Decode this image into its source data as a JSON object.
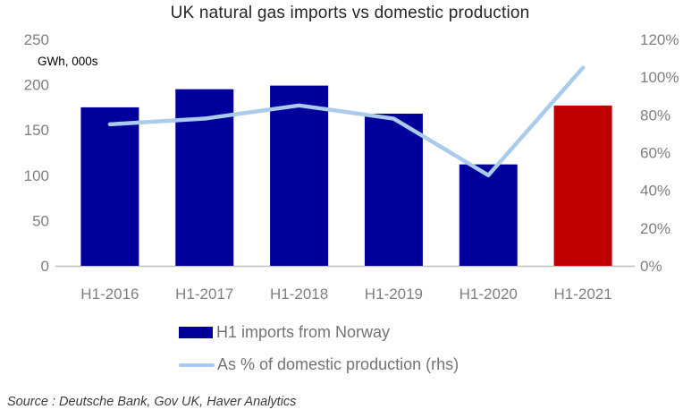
{
  "title": "UK natural gas imports vs domestic production",
  "source": "Source : Deutsche Bank, Gov UK, Haver Analytics",
  "colors": {
    "bar": "#02009A",
    "bar_highlight": "#C00000",
    "line": "#AACBEB",
    "axis_text": "#7F7F7F",
    "baseline": "#BFBFBF",
    "title_text": "#262626",
    "legend_text": "#737373",
    "source_text": "#3C3C3C"
  },
  "legend": {
    "bar_label": "H1 imports from Norway",
    "line_label": "As % of domestic production (rhs)"
  },
  "chart_data": {
    "type": "bar",
    "title": "UK natural gas imports vs domestic production",
    "categories": [
      "H1-2016",
      "H1-2017",
      "H1-2018",
      "H1-2019",
      "H1-2020",
      "H1-2021"
    ],
    "series": [
      {
        "name": "H1 imports from Norway",
        "type": "bar",
        "axis": "left",
        "values": [
          175,
          195,
          199,
          168,
          112,
          177
        ],
        "bar_colors": [
          "#02009A",
          "#02009A",
          "#02009A",
          "#02009A",
          "#02009A",
          "#C00000"
        ]
      },
      {
        "name": "As % of domestic production (rhs)",
        "type": "line",
        "axis": "right",
        "values": [
          75,
          78,
          85,
          78,
          48,
          105
        ],
        "color": "#AACBEB"
      }
    ],
    "left_axis": {
      "label": "GWh, 000s",
      "tick_labels": [
        "0",
        "50",
        "100",
        "150",
        "200",
        "250"
      ],
      "tick_values": [
        0,
        50,
        100,
        150,
        200,
        250
      ],
      "min": 0,
      "max": 250
    },
    "right_axis": {
      "tick_labels": [
        "0%",
        "20%",
        "40%",
        "60%",
        "80%",
        "100%",
        "120%"
      ],
      "tick_values": [
        0,
        20,
        40,
        60,
        80,
        100,
        120
      ],
      "min": 0,
      "max": 120
    },
    "grid": false,
    "legend_position": "bottom"
  }
}
